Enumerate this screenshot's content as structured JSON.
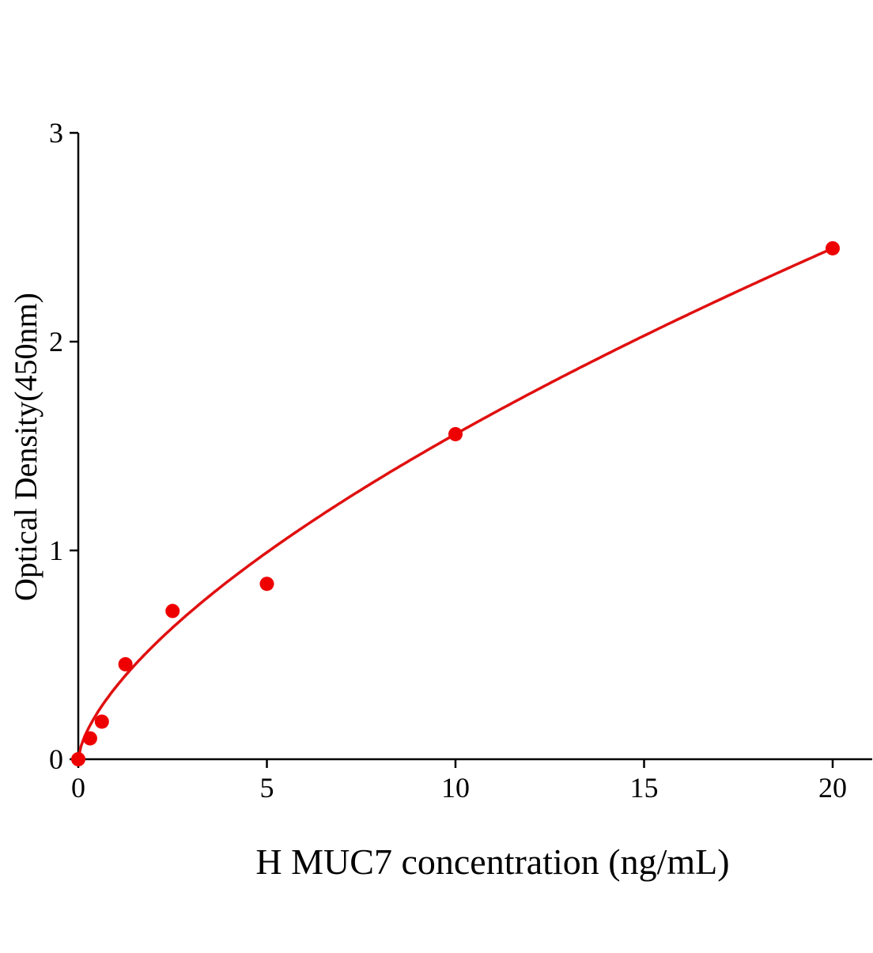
{
  "chart_data": {
    "type": "scatter",
    "title": "",
    "xlabel": "H MUC7 concentration (ng/mL)",
    "ylabel": "Optical Density(450nm)",
    "xlim": [
      0,
      21
    ],
    "ylim": [
      0,
      3
    ],
    "xticks": [
      0,
      5,
      10,
      15,
      20
    ],
    "yticks": [
      0,
      1,
      2,
      3
    ],
    "grid": false,
    "legend": "none",
    "colors": {
      "points": "#ee0000",
      "curve": "#e01010",
      "axis": "#000000"
    },
    "series": [
      {
        "x": [
          0,
          0.3125,
          0.625,
          1.25,
          2.5,
          5,
          10,
          20
        ],
        "y": [
          0.0,
          0.1,
          0.18,
          0.455,
          0.71,
          0.84,
          1.557,
          2.447
        ]
      }
    ],
    "fit": "standard curve"
  }
}
